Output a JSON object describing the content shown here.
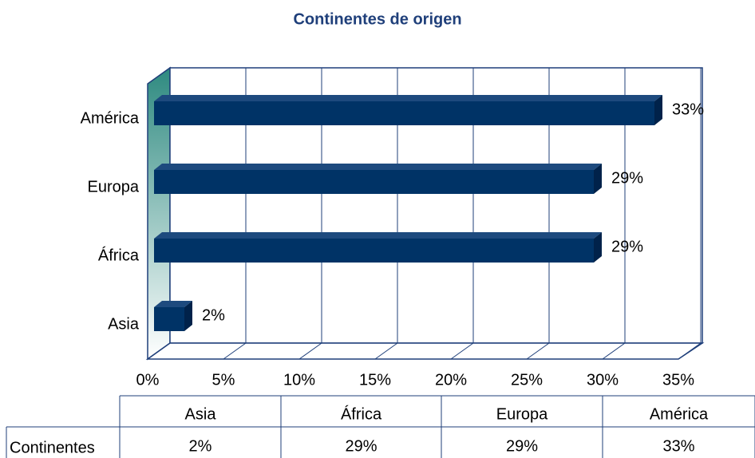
{
  "chart_data": {
    "type": "bar3d_horizontal",
    "title": "Continentes de origen",
    "categories": [
      "Asia",
      "África",
      "Europa",
      "América"
    ],
    "series": [
      {
        "name": "Continentes",
        "color": "#003366",
        "values": [
          2,
          29,
          29,
          33
        ],
        "value_labels": [
          "2%",
          "29%",
          "29%",
          "33%"
        ]
      }
    ],
    "xlim": [
      0,
      35
    ],
    "xticks": [
      {
        "value": 0,
        "label": "0%"
      },
      {
        "value": 5,
        "label": "5%"
      },
      {
        "value": 10,
        "label": "10%"
      },
      {
        "value": 15,
        "label": "15%"
      },
      {
        "value": 20,
        "label": "20%"
      },
      {
        "value": 25,
        "label": "25%"
      },
      {
        "value": 30,
        "label": "30%"
      },
      {
        "value": 35,
        "label": "35%"
      }
    ],
    "grid": true
  }
}
